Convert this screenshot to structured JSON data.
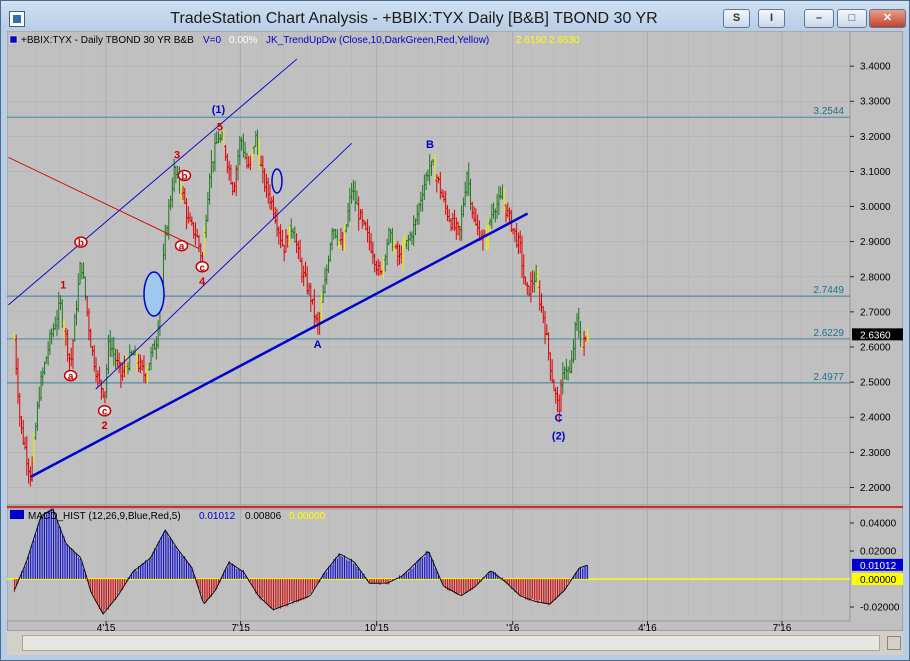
{
  "window": {
    "title": "TradeStation Chart Analysis - +BBIX:TYX Daily [B&B] TBOND 30 YR",
    "btn_s": "S",
    "btn_i": "I"
  },
  "header": {
    "symbol": "+BBIX:TYX - Daily  TBOND 30 YR  B&B",
    "v0": "V=0",
    "pct": "0.00%",
    "indicator": "JK_TrendUpDw (Close,10,DarkGreen,Red,Yellow)",
    "ind_v1": "2.6190",
    "ind_v2": "2.6530"
  },
  "macd_header": {
    "label": "MACD_HIST (12,26,9,Blue,Red,5)",
    "v1": "0.01012",
    "v2": "0.00806",
    "v3": "0.00000"
  },
  "colors": {
    "bg": "#c0c0c0",
    "up": "#227722",
    "down": "#dd0000",
    "neutral": "#eeee00",
    "trend": "#0000dd",
    "macd_pos": "#0000cc",
    "macd_neg": "#cc0000"
  },
  "chart_data": [
    {
      "type": "candlestick-price",
      "ylim": [
        2.15,
        3.5
      ],
      "yticks": [
        "3.4000",
        "3.3000",
        "3.2000",
        "3.1000",
        "3.0000",
        "2.9000",
        "2.8000",
        "2.7000",
        "2.6000",
        "2.5000",
        "2.4000",
        "2.3000",
        "2.2000"
      ],
      "ytick_values": [
        3.4,
        3.3,
        3.2,
        3.1,
        3.0,
        2.9,
        2.8,
        2.7,
        2.6,
        2.5,
        2.4,
        2.3,
        2.2
      ],
      "xticks": [
        "4'15",
        "7'15",
        "10'15",
        "'16",
        "4'16",
        "7'16"
      ],
      "xtick_days": [
        62,
        153,
        245,
        337,
        428,
        519
      ],
      "xlim_days": [
        -5,
        565
      ],
      "last_price": "2.6360",
      "hlines": [
        {
          "label": "3.2544",
          "value": 3.2544
        },
        {
          "label": "2.7449",
          "value": 2.7449
        },
        {
          "label": "2.6229",
          "value": 2.6229
        },
        {
          "label": "2.4977",
          "value": 2.4977
        }
      ],
      "anchors": [
        {
          "d": 0,
          "p": 2.62
        },
        {
          "d": 4,
          "p": 2.38
        },
        {
          "d": 11,
          "p": 2.23
        },
        {
          "d": 17,
          "p": 2.48
        },
        {
          "d": 24,
          "p": 2.62
        },
        {
          "d": 31,
          "p": 2.72
        },
        {
          "d": 38,
          "p": 2.55
        },
        {
          "d": 45,
          "p": 2.85
        },
        {
          "d": 52,
          "p": 2.6
        },
        {
          "d": 57,
          "p": 2.5
        },
        {
          "d": 61,
          "p": 2.47
        },
        {
          "d": 64,
          "p": 2.62
        },
        {
          "d": 72,
          "p": 2.52
        },
        {
          "d": 80,
          "p": 2.58
        },
        {
          "d": 88,
          "p": 2.52
        },
        {
          "d": 96,
          "p": 2.62
        },
        {
          "d": 103,
          "p": 2.95
        },
        {
          "d": 108,
          "p": 3.1
        },
        {
          "d": 113,
          "p": 3.05
        },
        {
          "d": 118,
          "p": 2.95
        },
        {
          "d": 123,
          "p": 2.92
        },
        {
          "d": 127,
          "p": 2.85
        },
        {
          "d": 132,
          "p": 3.1
        },
        {
          "d": 138,
          "p": 3.2
        },
        {
          "d": 143,
          "p": 3.15
        },
        {
          "d": 148,
          "p": 3.05
        },
        {
          "d": 153,
          "p": 3.2
        },
        {
          "d": 158,
          "p": 3.1
        },
        {
          "d": 163,
          "p": 3.2
        },
        {
          "d": 168,
          "p": 3.08
        },
        {
          "d": 175,
          "p": 3.0
        },
        {
          "d": 182,
          "p": 2.88
        },
        {
          "d": 188,
          "p": 2.95
        },
        {
          "d": 194,
          "p": 2.82
        },
        {
          "d": 200,
          "p": 2.75
        },
        {
          "d": 205,
          "p": 2.65
        },
        {
          "d": 210,
          "p": 2.78
        },
        {
          "d": 215,
          "p": 2.95
        },
        {
          "d": 222,
          "p": 2.88
        },
        {
          "d": 228,
          "p": 3.05
        },
        {
          "d": 235,
          "p": 2.95
        },
        {
          "d": 242,
          "p": 2.88
        },
        {
          "d": 247,
          "p": 2.8
        },
        {
          "d": 253,
          "p": 2.92
        },
        {
          "d": 260,
          "p": 2.85
        },
        {
          "d": 266,
          "p": 2.9
        },
        {
          "d": 271,
          "p": 2.95
        },
        {
          "d": 276,
          "p": 3.05
        },
        {
          "d": 281,
          "p": 3.12
        },
        {
          "d": 286,
          "p": 3.08
        },
        {
          "d": 291,
          "p": 3.0
        },
        {
          "d": 296,
          "p": 2.95
        },
        {
          "d": 301,
          "p": 2.92
        },
        {
          "d": 306,
          "p": 3.1
        },
        {
          "d": 311,
          "p": 2.95
        },
        {
          "d": 318,
          "p": 2.9
        },
        {
          "d": 324,
          "p": 3.0
        },
        {
          "d": 330,
          "p": 3.02
        },
        {
          "d": 336,
          "p": 2.95
        },
        {
          "d": 342,
          "p": 2.88
        },
        {
          "d": 346,
          "p": 2.75
        },
        {
          "d": 352,
          "p": 2.8
        },
        {
          "d": 358,
          "p": 2.68
        },
        {
          "d": 364,
          "p": 2.5
        },
        {
          "d": 368,
          "p": 2.42
        },
        {
          "d": 372,
          "p": 2.55
        },
        {
          "d": 376,
          "p": 2.52
        },
        {
          "d": 380,
          "p": 2.68
        },
        {
          "d": 384,
          "p": 2.6
        },
        {
          "d": 388,
          "p": 2.64
        }
      ],
      "trendlines": [
        {
          "d1": 11,
          "p1": 2.23,
          "d2": 347,
          "p2": 2.98,
          "style": "thick-blue"
        },
        {
          "d1": -4,
          "p1": 2.72,
          "d2": 191,
          "p2": 3.42,
          "style": "thin-blue"
        },
        {
          "d1": 55,
          "p1": 2.48,
          "d2": 228,
          "p2": 3.18,
          "style": "thin-blue"
        },
        {
          "d1": -4,
          "p1": 3.14,
          "d2": 125,
          "p2": 2.88,
          "style": "thin-red"
        }
      ],
      "waves": [
        {
          "label": "(1)",
          "d": 138,
          "p": 3.27,
          "color": "blue"
        },
        {
          "label": "5",
          "d": 139,
          "p": 3.22,
          "color": "red"
        },
        {
          "label": "3",
          "d": 110,
          "p": 3.14,
          "color": "red"
        },
        {
          "label": "1",
          "d": 33,
          "p": 2.77,
          "color": "red"
        },
        {
          "label": "b",
          "d": 45,
          "p": 2.89,
          "color": "red",
          "circle": true
        },
        {
          "label": "a",
          "d": 38,
          "p": 2.51,
          "color": "red",
          "circle": true
        },
        {
          "label": "c",
          "d": 61,
          "p": 2.41,
          "color": "red",
          "circle": true
        },
        {
          "label": "2",
          "d": 61,
          "p": 2.37,
          "color": "red"
        },
        {
          "label": "b",
          "d": 115,
          "p": 3.08,
          "color": "red",
          "circle": true
        },
        {
          "label": "a",
          "d": 113,
          "p": 2.88,
          "color": "red",
          "circle": true
        },
        {
          "label": "c",
          "d": 127,
          "p": 2.82,
          "color": "red",
          "circle": true
        },
        {
          "label": "4",
          "d": 127,
          "p": 2.78,
          "color": "red"
        },
        {
          "label": "A",
          "d": 205,
          "p": 2.6,
          "color": "blue"
        },
        {
          "label": "B",
          "d": 281,
          "p": 3.17,
          "color": "blue"
        },
        {
          "label": "C",
          "d": 368,
          "p": 2.39,
          "color": "blue"
        },
        {
          "label": "(2)",
          "d": 368,
          "p": 2.34,
          "color": "blue"
        }
      ]
    },
    {
      "type": "histogram",
      "ylim": [
        -0.03,
        0.05
      ],
      "yticks": [
        "0.04000",
        "0.02000",
        "-0.02000"
      ],
      "ytick_values": [
        0.04,
        0.02,
        -0.02
      ],
      "last_value": "0.01012",
      "zero_label": "0.00000",
      "anchors": [
        {
          "d": 0,
          "v": -0.008
        },
        {
          "d": 8,
          "v": 0.012
        },
        {
          "d": 18,
          "v": 0.045
        },
        {
          "d": 26,
          "v": 0.05
        },
        {
          "d": 35,
          "v": 0.025
        },
        {
          "d": 45,
          "v": 0.015
        },
        {
          "d": 52,
          "v": -0.01
        },
        {
          "d": 60,
          "v": -0.025
        },
        {
          "d": 70,
          "v": -0.012
        },
        {
          "d": 80,
          "v": 0.005
        },
        {
          "d": 92,
          "v": 0.015
        },
        {
          "d": 102,
          "v": 0.035
        },
        {
          "d": 110,
          "v": 0.022
        },
        {
          "d": 120,
          "v": 0.008
        },
        {
          "d": 128,
          "v": -0.018
        },
        {
          "d": 136,
          "v": -0.008
        },
        {
          "d": 145,
          "v": 0.012
        },
        {
          "d": 155,
          "v": 0.005
        },
        {
          "d": 165,
          "v": -0.012
        },
        {
          "d": 175,
          "v": -0.022
        },
        {
          "d": 190,
          "v": -0.016
        },
        {
          "d": 200,
          "v": -0.012
        },
        {
          "d": 210,
          "v": 0.005
        },
        {
          "d": 220,
          "v": 0.018
        },
        {
          "d": 230,
          "v": 0.012
        },
        {
          "d": 240,
          "v": -0.003
        },
        {
          "d": 252,
          "v": -0.003
        },
        {
          "d": 262,
          "v": 0.002
        },
        {
          "d": 272,
          "v": 0.012
        },
        {
          "d": 280,
          "v": 0.02
        },
        {
          "d": 290,
          "v": -0.005
        },
        {
          "d": 302,
          "v": -0.012
        },
        {
          "d": 312,
          "v": -0.005
        },
        {
          "d": 322,
          "v": 0.006
        },
        {
          "d": 332,
          "v": -0.002
        },
        {
          "d": 342,
          "v": -0.012
        },
        {
          "d": 352,
          "v": -0.016
        },
        {
          "d": 362,
          "v": -0.018
        },
        {
          "d": 372,
          "v": -0.008
        },
        {
          "d": 382,
          "v": 0.008
        },
        {
          "d": 388,
          "v": 0.01
        }
      ]
    }
  ]
}
